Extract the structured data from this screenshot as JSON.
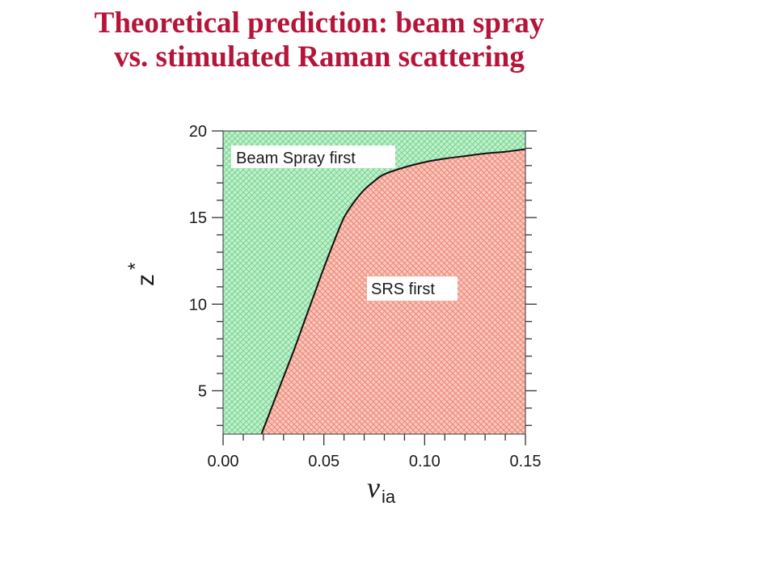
{
  "slide": {
    "title_line1": "Theoretical prediction: beam spray",
    "title_line2": "vs. stimulated Raman scattering"
  },
  "chart_data": {
    "type": "area",
    "xlabel": "ν",
    "xlabel_sub": "ia",
    "ylabel": "z",
    "ylabel_sup": "*",
    "xlim": [
      0.0,
      0.15
    ],
    "ylim": [
      2.5,
      20
    ],
    "x_ticks": [
      "0.00",
      "0.05",
      "0.10",
      "0.15"
    ],
    "y_ticks": [
      "5",
      "10",
      "15",
      "20"
    ],
    "x_tick_values": [
      0.0,
      0.05,
      0.1,
      0.15
    ],
    "y_tick_values": [
      5,
      10,
      15,
      20
    ],
    "regions": [
      {
        "name": "Beam Spray first",
        "position": "upper-left",
        "color": "#5ecf72"
      },
      {
        "name": "SRS first",
        "position": "lower-right",
        "color": "#ef5a6e"
      }
    ],
    "boundary": {
      "x": [
        0.019,
        0.025,
        0.03,
        0.035,
        0.04,
        0.045,
        0.05,
        0.055,
        0.06,
        0.065,
        0.07,
        0.075,
        0.08,
        0.09,
        0.1,
        0.11,
        0.12,
        0.13,
        0.14,
        0.15
      ],
      "y": [
        2.5,
        4.3,
        5.8,
        7.3,
        8.9,
        10.5,
        12.1,
        13.6,
        15.0,
        15.9,
        16.6,
        17.1,
        17.5,
        17.9,
        18.2,
        18.4,
        18.55,
        18.7,
        18.8,
        18.95
      ]
    },
    "grid": false
  }
}
